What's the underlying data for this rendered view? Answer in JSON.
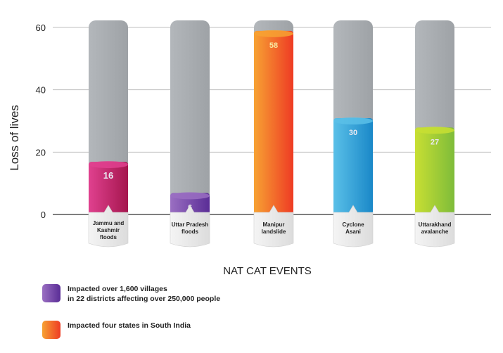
{
  "chart_data": {
    "type": "bar",
    "title": "",
    "xlabel": "NAT CAT EVENTS",
    "ylabel": "Loss of lives",
    "ylim": [
      0,
      60
    ],
    "yticks": [
      0,
      20,
      40,
      60
    ],
    "grid": true,
    "categories": [
      "Jammu and\nKashmir\nfloods",
      "Uttar Pradesh\nfloods",
      "Manipur\nlandslide",
      "Cyclone\nAsani",
      "Uttarakhand\navalanche"
    ],
    "values": [
      16,
      6,
      58,
      30,
      27
    ],
    "value_labels": [
      "16",
      "6",
      "58",
      "30",
      "27"
    ],
    "colors": [
      [
        "#e0418f",
        "#a5164e"
      ],
      [
        "#9a6fc2",
        "#5a2d96"
      ],
      [
        "#f7a233",
        "#ee3b24"
      ],
      [
        "#5ac0e8",
        "#1a88c8"
      ],
      [
        "#c8df33",
        "#7ebc3a"
      ]
    ],
    "background_color": "#a9adb1",
    "legend": [
      {
        "text": "Impacted over 1,600 villages\nin 22 districts affecting over 250,000 people",
        "colors": [
          "#9a6fc2",
          "#5a2d96"
        ]
      },
      {
        "text": "Impacted four states in South India",
        "colors": [
          "#f7a233",
          "#ee3b24"
        ]
      }
    ]
  }
}
